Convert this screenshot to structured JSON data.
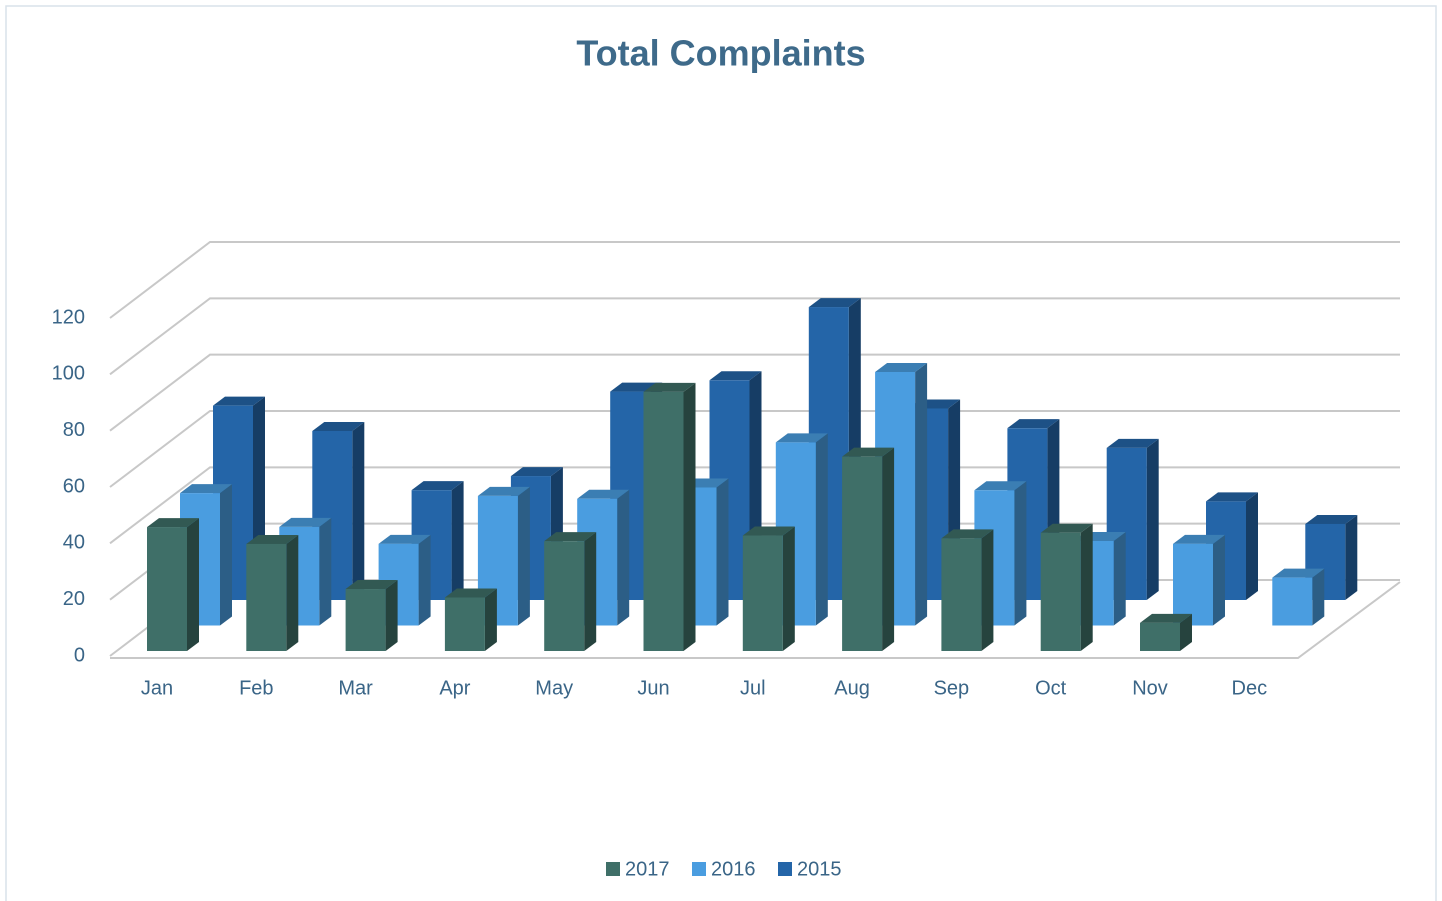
{
  "chart_data": {
    "type": "bar3d",
    "title": "Total Complaints",
    "categories": [
      "Jan",
      "Feb",
      "Mar",
      "Apr",
      "May",
      "Jun",
      "Jul",
      "Aug",
      "Sep",
      "Oct",
      "Nov",
      "Dec"
    ],
    "series": [
      {
        "name": "2017",
        "color": "#3f6f68",
        "values": [
          44,
          38,
          22,
          19,
          39,
          92,
          41,
          69,
          40,
          42,
          10,
          null
        ]
      },
      {
        "name": "2016",
        "color": "#4a9de0",
        "values": [
          47,
          35,
          29,
          46,
          45,
          49,
          65,
          90,
          48,
          30,
          29,
          17
        ]
      },
      {
        "name": "2015",
        "color": "#2465a8",
        "values": [
          69,
          60,
          39,
          44,
          74,
          78,
          104,
          68,
          61,
          54,
          35,
          27
        ]
      }
    ],
    "ylim": [
      0,
      120
    ],
    "yticks": [
      0,
      20,
      40,
      60,
      80,
      100,
      120
    ],
    "grid": true,
    "legend": "bottom"
  }
}
